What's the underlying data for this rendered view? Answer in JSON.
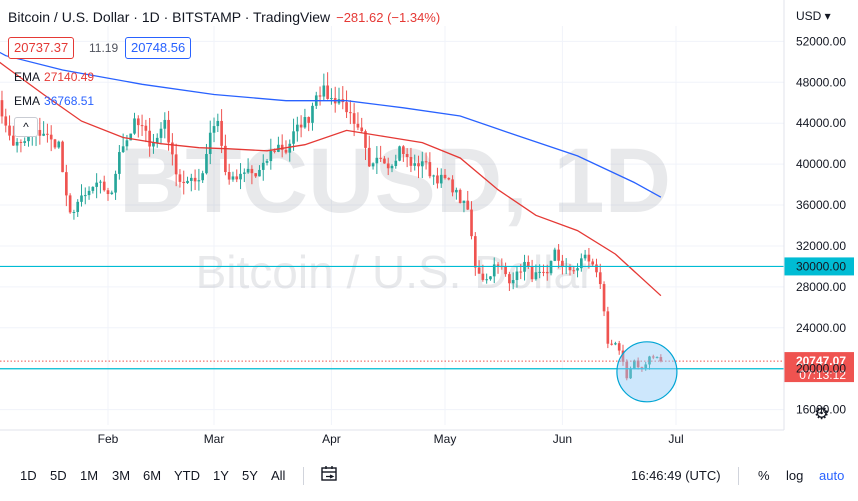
{
  "header": {
    "title": "Bitcoin / U.S. Dollar · 1D · BITSTAMP · TradingView",
    "change": "−281.62 (−1.34%)",
    "bid": "20737.37",
    "spread": "11.19",
    "ask": "20748.56"
  },
  "indicators": [
    {
      "label": "EMA",
      "value": "27140.49",
      "color": "#e53935"
    },
    {
      "label": "EMA",
      "value": "36768.51",
      "color": "#2962ff"
    }
  ],
  "collapse_glyph": "^",
  "currency": "USD ▾",
  "watermark": {
    "symbol": "BTCUSD, 1D",
    "name": "Bitcoin / U.S. Dollar"
  },
  "chart_data": {
    "type": "candlestick",
    "ylim": [
      14500,
      53500
    ],
    "y_ticks": [
      "52000.00",
      "48000.00",
      "44000.00",
      "40000.00",
      "36000.00",
      "32000.00",
      "28000.00",
      "24000.00",
      "20000.00",
      "16000.00"
    ],
    "x_ticks": [
      {
        "label": "Feb",
        "date": "2022-02-01"
      },
      {
        "label": "Mar",
        "date": "2022-03-01"
      },
      {
        "label": "Apr",
        "date": "2022-04-01"
      },
      {
        "label": "May",
        "date": "2022-05-01"
      },
      {
        "label": "Jun",
        "date": "2022-06-01"
      },
      {
        "label": "Jul",
        "date": "2022-07-01"
      }
    ],
    "up_color": "#26a69a",
    "down_color": "#ef5350",
    "close_path": [
      [
        "2022-01-01",
        47500
      ],
      [
        "2022-01-03",
        46500
      ],
      [
        "2022-01-05",
        43500
      ],
      [
        "2022-01-07",
        42000
      ],
      [
        "2022-01-09",
        41800
      ],
      [
        "2022-01-11",
        42600
      ],
      [
        "2022-01-13",
        43000
      ],
      [
        "2022-01-15",
        43100
      ],
      [
        "2022-01-17",
        42200
      ],
      [
        "2022-01-19",
        42000
      ],
      [
        "2022-01-21",
        36500
      ],
      [
        "2022-01-22",
        35000
      ],
      [
        "2022-01-24",
        36300
      ],
      [
        "2022-01-26",
        36800
      ],
      [
        "2022-01-28",
        37700
      ],
      [
        "2022-01-30",
        37900
      ],
      [
        "2022-02-02",
        36900
      ],
      [
        "2022-02-04",
        41500
      ],
      [
        "2022-02-06",
        42400
      ],
      [
        "2022-02-08",
        44000
      ],
      [
        "2022-02-10",
        43500
      ],
      [
        "2022-02-12",
        42200
      ],
      [
        "2022-02-14",
        42500
      ],
      [
        "2022-02-16",
        44400
      ],
      [
        "2022-02-18",
        40500
      ],
      [
        "2022-02-20",
        38400
      ],
      [
        "2022-02-22",
        38200
      ],
      [
        "2022-02-24",
        38300
      ],
      [
        "2022-02-26",
        39200
      ],
      [
        "2022-02-28",
        43200
      ],
      [
        "2022-03-02",
        44400
      ],
      [
        "2022-03-04",
        39100
      ],
      [
        "2022-03-06",
        38400
      ],
      [
        "2022-03-08",
        38700
      ],
      [
        "2022-03-10",
        39400
      ],
      [
        "2022-03-12",
        38800
      ],
      [
        "2022-03-14",
        39700
      ],
      [
        "2022-03-16",
        41100
      ],
      [
        "2022-03-18",
        41800
      ],
      [
        "2022-03-20",
        41300
      ],
      [
        "2022-03-22",
        42900
      ],
      [
        "2022-03-24",
        44000
      ],
      [
        "2022-03-26",
        44500
      ],
      [
        "2022-03-28",
        47100
      ],
      [
        "2022-03-30",
        47100
      ],
      [
        "2022-04-01",
        46300
      ],
      [
        "2022-04-03",
        46400
      ],
      [
        "2022-04-05",
        45500
      ],
      [
        "2022-04-07",
        43500
      ],
      [
        "2022-04-09",
        42800
      ],
      [
        "2022-04-11",
        39500
      ],
      [
        "2022-04-13",
        41100
      ],
      [
        "2022-04-15",
        40500
      ],
      [
        "2022-04-17",
        39700
      ],
      [
        "2022-04-19",
        41500
      ],
      [
        "2022-04-21",
        40500
      ],
      [
        "2022-04-23",
        39700
      ],
      [
        "2022-04-25",
        40400
      ],
      [
        "2022-04-27",
        39200
      ],
      [
        "2022-04-29",
        38600
      ],
      [
        "2022-05-01",
        38500
      ],
      [
        "2022-05-03",
        37700
      ],
      [
        "2022-05-05",
        36500
      ],
      [
        "2022-05-07",
        35500
      ],
      [
        "2022-05-09",
        30100
      ],
      [
        "2022-05-11",
        28900
      ],
      [
        "2022-05-12",
        28700
      ],
      [
        "2022-05-14",
        30000
      ],
      [
        "2022-05-16",
        29800
      ],
      [
        "2022-05-18",
        28700
      ],
      [
        "2022-05-20",
        29200
      ],
      [
        "2022-05-22",
        30300
      ],
      [
        "2022-05-24",
        29100
      ],
      [
        "2022-05-26",
        29200
      ],
      [
        "2022-05-28",
        29000
      ],
      [
        "2022-05-30",
        31700
      ],
      [
        "2022-06-01",
        29800
      ],
      [
        "2022-06-03",
        29700
      ],
      [
        "2022-06-05",
        29900
      ],
      [
        "2022-06-07",
        31100
      ],
      [
        "2022-06-09",
        30100
      ],
      [
        "2022-06-11",
        28400
      ],
      [
        "2022-06-13",
        22500
      ],
      [
        "2022-06-15",
        22600
      ],
      [
        "2022-06-17",
        20400
      ],
      [
        "2022-06-18",
        19000
      ],
      [
        "2022-06-20",
        20600
      ],
      [
        "2022-06-22",
        20000
      ],
      [
        "2022-06-24",
        21200
      ],
      [
        "2022-06-26",
        21000
      ],
      [
        "2022-06-27",
        20747
      ]
    ],
    "ema_series": [
      {
        "label": "EMA",
        "color": "#e53935",
        "values": [
          [
            "2021-12-28",
            51700
          ],
          [
            "2022-01-05",
            49500
          ],
          [
            "2022-01-15",
            46800
          ],
          [
            "2022-01-25",
            44200
          ],
          [
            "2022-02-05",
            42600
          ],
          [
            "2022-02-15",
            42000
          ],
          [
            "2022-02-25",
            41600
          ],
          [
            "2022-03-05",
            41500
          ],
          [
            "2022-03-15",
            41300
          ],
          [
            "2022-03-25",
            41900
          ],
          [
            "2022-04-05",
            43300
          ],
          [
            "2022-04-15",
            42700
          ],
          [
            "2022-04-25",
            42100
          ],
          [
            "2022-05-05",
            40600
          ],
          [
            "2022-05-15",
            37500
          ],
          [
            "2022-05-25",
            35000
          ],
          [
            "2022-06-05",
            33500
          ],
          [
            "2022-06-15",
            31200
          ],
          [
            "2022-06-27",
            27140
          ]
        ]
      },
      {
        "label": "EMA",
        "color": "#2962ff",
        "values": [
          [
            "2021-12-28",
            52200
          ],
          [
            "2022-01-05",
            50600
          ],
          [
            "2022-01-20",
            49200
          ],
          [
            "2022-02-10",
            47800
          ],
          [
            "2022-03-01",
            46800
          ],
          [
            "2022-03-20",
            46200
          ],
          [
            "2022-04-05",
            46200
          ],
          [
            "2022-04-20",
            45500
          ],
          [
            "2022-05-05",
            44700
          ],
          [
            "2022-05-20",
            42800
          ],
          [
            "2022-06-05",
            40800
          ],
          [
            "2022-06-20",
            38200
          ],
          [
            "2022-06-27",
            36768
          ]
        ]
      }
    ],
    "horizontal_levels": [
      {
        "value": 30000,
        "label": "30000.00",
        "color": "#00bcd4"
      },
      {
        "value": 20000,
        "label": "20000.00",
        "color": "#00bcd4"
      }
    ],
    "last_price": {
      "value": 20747,
      "label": "20747.07",
      "countdown": "07:13:12",
      "color": "#ef5350"
    },
    "annotation_circle": {
      "date": "2022-06-22",
      "value": 19700
    }
  },
  "bottom_toolbar": {
    "ranges": [
      "1D",
      "5D",
      "1M",
      "3M",
      "6M",
      "YTD",
      "1Y",
      "5Y",
      "All"
    ],
    "time": "16:46:49 (UTC)",
    "percent": "%",
    "log": "log",
    "auto": "auto"
  }
}
